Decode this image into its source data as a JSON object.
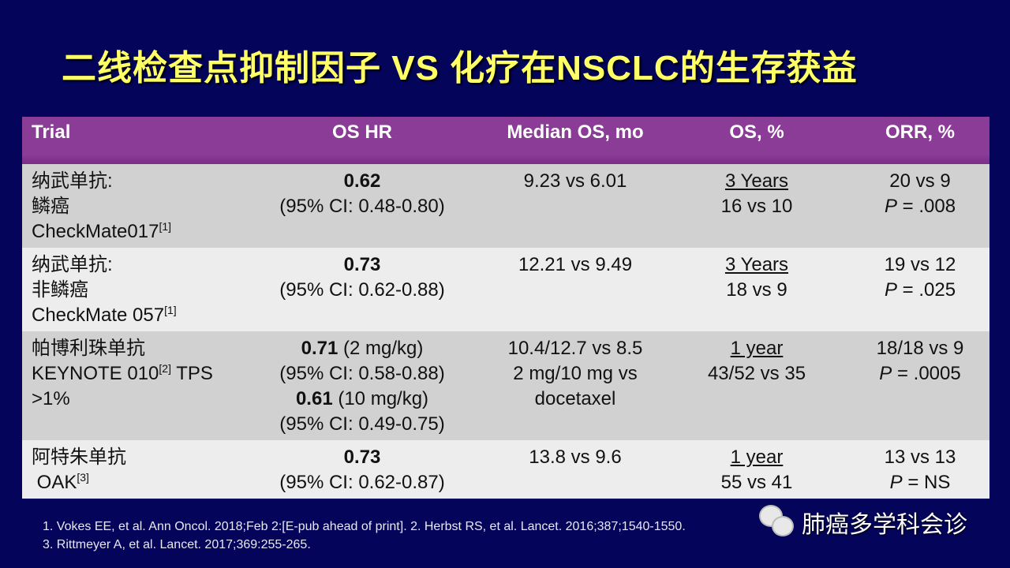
{
  "title": "二线检查点抑制因子 VS 化疗在NSCLC的生存获益",
  "table": {
    "headers": [
      "Trial",
      "OS HR",
      "Median OS, mo",
      "OS, %",
      "ORR, %"
    ],
    "rows": [
      {
        "trial": [
          "纳武单抗:",
          "鳞癌",
          "CheckMate017"
        ],
        "ref": "[1]",
        "hr": "0.62",
        "ci": "(95% CI: 0.48-0.80)",
        "median": [
          "9.23 vs 6.01"
        ],
        "os_label": "3 Years",
        "os": "16 vs 10",
        "orr": "20 vs 9",
        "p": "= .008"
      },
      {
        "trial": [
          "纳武单抗:",
          "非鳞癌",
          "CheckMate 057"
        ],
        "ref": "[1]",
        "hr": "0.73",
        "ci": "(95% CI: 0.62-0.88)",
        "median": [
          "12.21 vs 9.49"
        ],
        "os_label": "3 Years",
        "os": "18 vs 9",
        "orr": "19 vs 12",
        "p": "= .025"
      },
      {
        "trial": [
          "帕博利珠单抗",
          "KEYNOTE 010",
          " TPS",
          ">1%"
        ],
        "ref": "[2]",
        "hr": "0.71",
        "hr_note": " (2 mg/kg)",
        "ci": "(95% CI: 0.58-0.88)",
        "hr2": "0.61",
        "hr2_note": " (10 mg/kg)",
        "ci2": "(95% CI: 0.49-0.75)",
        "median": [
          "10.4/12.7 vs 8.5",
          "2 mg/10 mg vs",
          "docetaxel"
        ],
        "os_label": "1 year",
        "os": "43/52 vs 35",
        "orr": "18/18 vs 9",
        "p": "= .0005"
      },
      {
        "trial": [
          "阿特朱单抗",
          " OAK"
        ],
        "ref": "[3]",
        "hr": "0.73",
        "ci": "(95% CI: 0.62-0.87)",
        "median": [
          "13.8 vs 9.6"
        ],
        "os_label": "1 year",
        "os": "55 vs 41",
        "orr": "13 vs 13",
        "p": "= NS"
      }
    ],
    "p_label": "P"
  },
  "footnotes": [
    "1. Vokes EE, et al. Ann Oncol. 2018;Feb 2:[E-pub ahead of print]. 2. Herbst RS, et al. Lancet. 2016;387;1540-1550.",
    "3. Rittmeyer A, et al. Lancet. 2017;369:255-265."
  ],
  "watermark": "肺癌多学科会诊"
}
